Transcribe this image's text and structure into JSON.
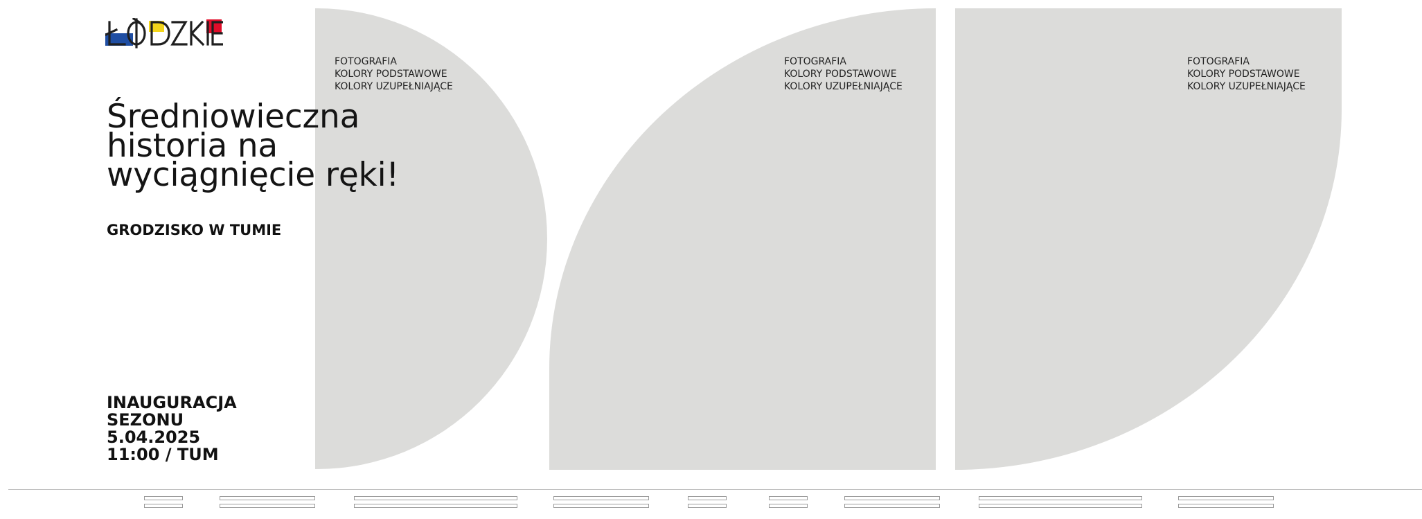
{
  "brand": {
    "logo_text": "ŁÓDZKIE",
    "colors": {
      "blue": "#1f4ea3",
      "yellow": "#f3d51b",
      "red": "#e10d2a",
      "text": "#1f1f1f"
    }
  },
  "photo_placeholders": [
    {
      "lines": [
        "FOTOGRAFIA",
        "KOLORY PODSTAWOWE",
        "KOLORY UZUPEŁNIAJĄCE"
      ]
    },
    {
      "lines": [
        "FOTOGRAFIA",
        "KOLORY PODSTAWOWE",
        "KOLORY UZUPEŁNIAJĄCE"
      ]
    },
    {
      "lines": [
        "FOTOGRAFIA",
        "KOLORY PODSTAWOWE",
        "KOLORY UZUPEŁNIAJĄCE"
      ]
    }
  ],
  "headline": {
    "line1": "Średniowieczna",
    "line2": "historia na",
    "line3": "wyciągnięcie ręki!"
  },
  "subtitle": "GRODZISKO W TUMIE",
  "event": {
    "line1": "INAUGURACJA",
    "line2": "SEZONU",
    "date": "5.04.2025",
    "time_place": "11:00 / TUM"
  },
  "theme": {
    "placeholder_fill": "#dcdcda",
    "nav_stroke": "#9a9a9a"
  }
}
